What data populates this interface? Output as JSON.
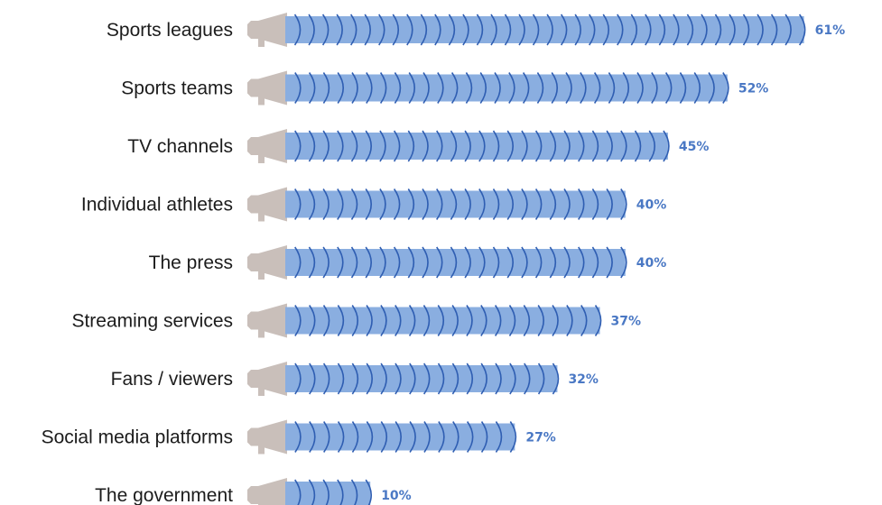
{
  "colors": {
    "bar": "#8aaee0",
    "bar_arc": "#2f5eb2",
    "megaphone": "#c9bfba",
    "value_text": "#4a78c4",
    "label_text": "#1c1c1c"
  },
  "chart_data": {
    "type": "bar",
    "orientation": "horizontal",
    "title": "",
    "xlabel": "",
    "ylabel": "",
    "xlim": [
      0,
      61
    ],
    "grid": false,
    "categories": [
      "Sports leagues",
      "Sports teams",
      "TV channels",
      "Individual athletes",
      "The press",
      "Streaming services",
      "Fans / viewers",
      "Social media platforms",
      "The government"
    ],
    "values": [
      61,
      52,
      45,
      40,
      40,
      37,
      32,
      27,
      10
    ],
    "value_labels": [
      "61%",
      "52%",
      "45%",
      "40%",
      "40%",
      "37%",
      "32%",
      "27%",
      "10%"
    ],
    "unit": "%"
  }
}
